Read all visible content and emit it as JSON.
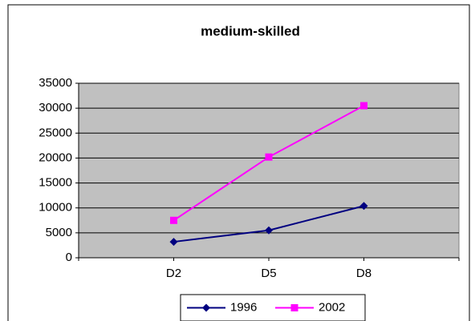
{
  "chart_data": {
    "type": "line",
    "title": "medium-skilled",
    "categories": [
      "D2",
      "D5",
      "D8"
    ],
    "series": [
      {
        "name": "1996",
        "color": "#000080",
        "marker": "diamond",
        "values": [
          3200,
          5500,
          10400
        ]
      },
      {
        "name": "2002",
        "color": "#ff00ff",
        "marker": "square",
        "values": [
          7500,
          20200,
          30500
        ]
      }
    ],
    "ylim": [
      0,
      35000
    ],
    "yticks": [
      0,
      5000,
      10000,
      15000,
      20000,
      25000,
      30000,
      35000
    ],
    "grid": true,
    "legend": "bottom",
    "plot_background": "#c0c0c0"
  }
}
